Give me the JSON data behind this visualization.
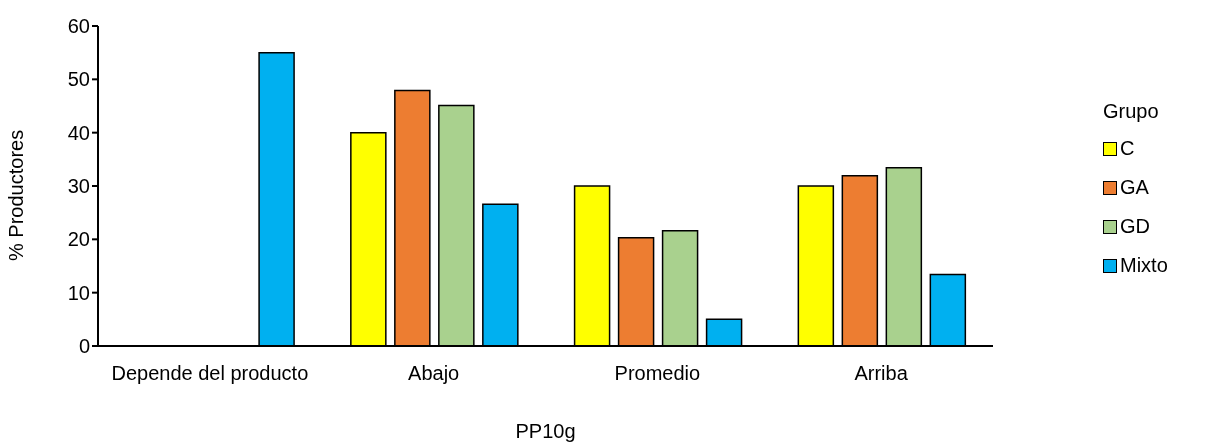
{
  "chart_data": {
    "type": "bar",
    "xlabel": "PP10g",
    "ylabel": "% Productores",
    "legend_title": "Grupo",
    "categories": [
      "Depende del producto",
      "Abajo",
      "Promedio",
      "Arriba"
    ],
    "series": [
      {
        "name": "C",
        "color": "#ffff00",
        "values": [
          0,
          40,
          30,
          30
        ]
      },
      {
        "name": "GA",
        "color": "#ed7d31",
        "values": [
          0,
          47.9,
          20.3,
          31.9
        ]
      },
      {
        "name": "GD",
        "color": "#a9d18e",
        "values": [
          0,
          45.1,
          21.6,
          33.4
        ]
      },
      {
        "name": "Mixto",
        "color": "#00b0f0",
        "values": [
          55,
          26.6,
          5,
          13.4
        ]
      }
    ],
    "ylim": [
      0,
      60
    ],
    "yticks": [
      0,
      10,
      20,
      30,
      40,
      50,
      60
    ],
    "grid": false,
    "legend": "right"
  }
}
